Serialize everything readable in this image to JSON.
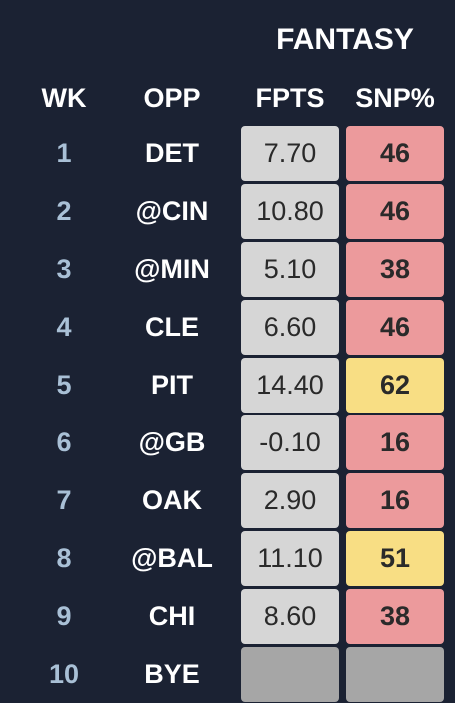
{
  "header": {
    "group": "FANTASY",
    "columns": {
      "wk": "WK",
      "opp": "OPP",
      "fpts": "FPTS",
      "snp": "SNP%"
    }
  },
  "colors": {
    "background": "#1b2233",
    "week_text": "#a9c0d6",
    "fpts_cell": "#d6d6d6",
    "snp_low": "#ec9a9c",
    "snp_mid": "#f8de84",
    "bye_cell": "#a6a6a6"
  },
  "rows": [
    {
      "wk": "1",
      "opp": "DET",
      "fpts": "7.70",
      "snp": "46",
      "snp_tier": "low"
    },
    {
      "wk": "2",
      "opp": "@CIN",
      "fpts": "10.80",
      "snp": "46",
      "snp_tier": "low"
    },
    {
      "wk": "3",
      "opp": "@MIN",
      "fpts": "5.10",
      "snp": "38",
      "snp_tier": "low"
    },
    {
      "wk": "4",
      "opp": "CLE",
      "fpts": "6.60",
      "snp": "46",
      "snp_tier": "low"
    },
    {
      "wk": "5",
      "opp": "PIT",
      "fpts": "14.40",
      "snp": "62",
      "snp_tier": "mid"
    },
    {
      "wk": "6",
      "opp": "@GB",
      "fpts": "-0.10",
      "snp": "16",
      "snp_tier": "low"
    },
    {
      "wk": "7",
      "opp": "OAK",
      "fpts": "2.90",
      "snp": "16",
      "snp_tier": "low"
    },
    {
      "wk": "8",
      "opp": "@BAL",
      "fpts": "11.10",
      "snp": "51",
      "snp_tier": "mid"
    },
    {
      "wk": "9",
      "opp": "CHI",
      "fpts": "8.60",
      "snp": "38",
      "snp_tier": "low"
    },
    {
      "wk": "10",
      "opp": "BYE",
      "fpts": "",
      "snp": "",
      "snp_tier": "bye"
    }
  ]
}
